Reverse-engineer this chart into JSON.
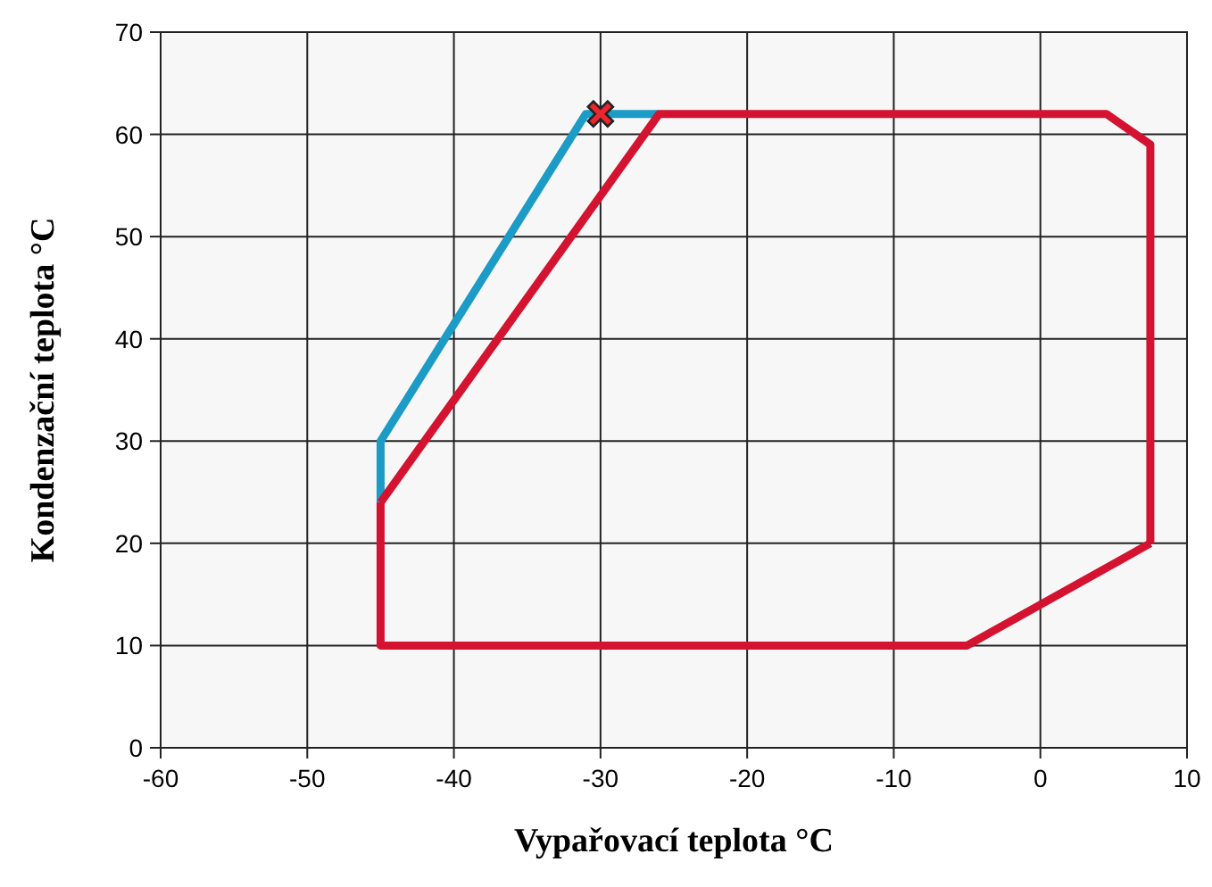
{
  "chart_data": {
    "type": "line",
    "xlabel": "Vypařovací teplota °C",
    "ylabel": "Kondenzační teplota °C",
    "xlim": [
      -60,
      10
    ],
    "ylim": [
      0,
      70
    ],
    "xticks": [
      -60,
      -50,
      -40,
      -30,
      -20,
      -10,
      0,
      10
    ],
    "yticks": [
      0,
      10,
      20,
      30,
      40,
      50,
      60,
      70
    ],
    "grid": true,
    "series": [
      {
        "color": "#1b9bc6",
        "x": [
          -45,
          -45,
          -31,
          -26
        ],
        "values": [
          24,
          30,
          62,
          62
        ]
      },
      {
        "color": "#d3132f",
        "x": [
          -45,
          -26,
          4.5,
          7.5,
          7.5
        ],
        "values": [
          24,
          62,
          62,
          59,
          20
        ]
      },
      {
        "color": "#d3132f",
        "x": [
          -45,
          -45,
          -5,
          7.5
        ],
        "values": [
          24,
          10,
          10,
          20
        ]
      },
      {
        "type": "scatter",
        "color": "#e8272f",
        "marker": "cross",
        "x": [
          -30
        ],
        "values": [
          62
        ]
      }
    ]
  }
}
